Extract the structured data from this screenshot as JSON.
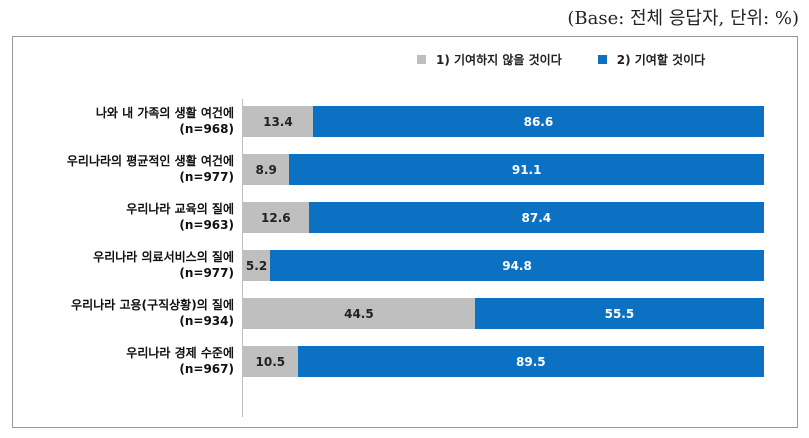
{
  "base_note": "(Base: 전체 응답자, 단위: %)",
  "chart_data": {
    "type": "bar",
    "orientation": "horizontal",
    "stacked": true,
    "categories": [
      [
        "나와 내 가족의 생활 여건에",
        "(n=968)"
      ],
      [
        "우리나라의 평균적인 생활 여건에",
        "(n=977)"
      ],
      [
        "우리나라 교육의 질에",
        "(n=963)"
      ],
      [
        "우리나라 의료서비스의 질에",
        "(n=977)"
      ],
      [
        "우리나라 고용(구직상황)의 질에",
        "(n=934)"
      ],
      [
        "우리나라 경제 수준에",
        "(n=967)"
      ]
    ],
    "series": [
      {
        "name": "1) 기여하지 않을 것이다",
        "color": "#bfbfbf",
        "values": [
          13.4,
          8.9,
          12.6,
          5.2,
          44.5,
          10.5
        ]
      },
      {
        "name": "2) 기여할 것이다",
        "color": "#0c71c3",
        "values": [
          86.6,
          91.1,
          87.4,
          94.8,
          55.5,
          89.5
        ]
      }
    ],
    "xlim": [
      0,
      100
    ],
    "legend_position": "top-right",
    "grid": false
  }
}
